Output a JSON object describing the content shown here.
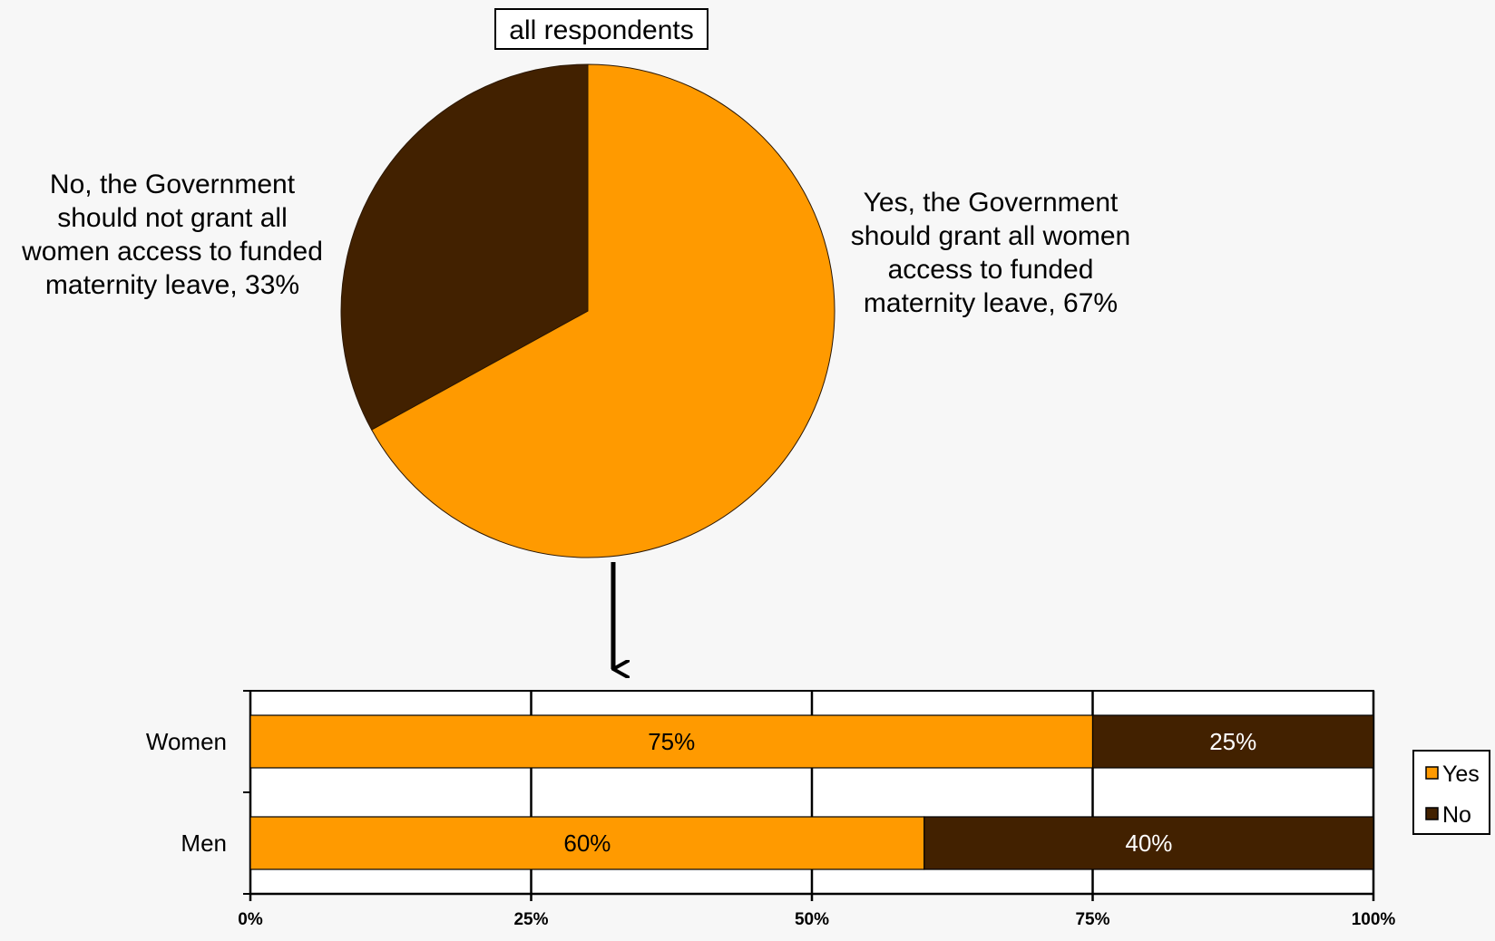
{
  "colors": {
    "yes": "#FF9A00",
    "no": "#422100",
    "background": "#f7f7f7"
  },
  "chart_data": [
    {
      "type": "pie",
      "title": "all respondents",
      "slices": [
        {
          "label": [
            "Yes, the Government",
            "should grant all women",
            "access to funded",
            "maternity leave, 67%"
          ],
          "value": 67
        },
        {
          "label": [
            "No, the Government",
            "should not grant all",
            "women access to funded",
            "maternity leave, 33%"
          ],
          "value": 33
        }
      ]
    },
    {
      "type": "bar",
      "orientation": "horizontal",
      "stacked": "percent",
      "categories": [
        "Women",
        "Men"
      ],
      "series": [
        {
          "name": "Yes",
          "values": [
            75,
            60
          ],
          "data_labels": [
            "75%",
            "60%"
          ]
        },
        {
          "name": "No",
          "values": [
            25,
            40
          ],
          "data_labels": [
            "25%",
            "40%"
          ]
        }
      ],
      "xlim": [
        0,
        100
      ],
      "xticks": [
        "0%",
        "25%",
        "50%",
        "75%",
        "100%"
      ],
      "grid": true,
      "legend": "right"
    }
  ]
}
